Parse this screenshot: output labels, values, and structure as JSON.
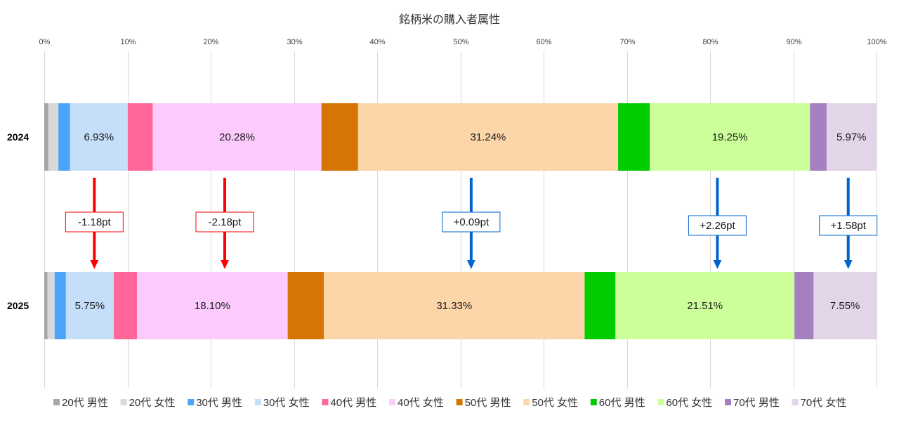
{
  "chart_data": {
    "type": "bar",
    "orientation": "horizontal",
    "stacked": "percent",
    "title": "銘柄米の購入者属性",
    "categories": [
      "2024",
      "2025"
    ],
    "xlim": [
      0,
      100
    ],
    "x_ticks": [
      "0%",
      "10%",
      "20%",
      "30%",
      "40%",
      "50%",
      "60%",
      "70%",
      "80%",
      "90%",
      "100%"
    ],
    "grid": "vertical",
    "legend_position": "bottom",
    "series": [
      {
        "name": "20代 男性",
        "color": "#a6a6a6",
        "values": [
          0.5,
          0.4
        ]
      },
      {
        "name": "20代 女性",
        "color": "#d9d9d9",
        "values": [
          1.2,
          0.85
        ]
      },
      {
        "name": "30代 男性",
        "color": "#4ba3fa",
        "values": [
          1.4,
          1.35
        ]
      },
      {
        "name": "30代 女性",
        "color": "#c5dffa",
        "values": [
          6.93,
          5.75
        ],
        "labels": [
          "6.93%",
          "5.75%"
        ],
        "change_label": "-1.18pt",
        "change_color": "#ff0000"
      },
      {
        "name": "40代 男性",
        "color": "#ff6699",
        "values": [
          3.0,
          2.8
        ]
      },
      {
        "name": "40代 女性",
        "color": "#fccafc",
        "values": [
          20.28,
          18.1
        ],
        "labels": [
          "20.28%",
          "18.10%"
        ],
        "change_label": "-2.18pt",
        "change_color": "#ff0000"
      },
      {
        "name": "50代 男性",
        "color": "#d67404",
        "values": [
          4.4,
          4.35
        ]
      },
      {
        "name": "50代 女性",
        "color": "#fcd5a8",
        "values": [
          31.24,
          31.33
        ],
        "labels": [
          "31.24%",
          "31.33%"
        ],
        "change_label": "+0.09pt",
        "change_color": "#0066cc"
      },
      {
        "name": "60代 男性",
        "color": "#00cc00",
        "values": [
          3.8,
          3.7
        ]
      },
      {
        "name": "60代 女性",
        "color": "#ccff99",
        "values": [
          19.25,
          21.51
        ],
        "labels": [
          "19.25%",
          "21.51%"
        ],
        "change_label": "+2.26pt",
        "change_color": "#0066cc"
      },
      {
        "name": "70代 男性",
        "color": "#a480c0",
        "values": [
          2.0,
          2.3
        ]
      },
      {
        "name": "70代 女性",
        "color": "#e1d5e7",
        "values": [
          5.97,
          7.55
        ],
        "labels": [
          "5.97%",
          "7.55%"
        ],
        "change_label": "+1.58pt",
        "change_color": "#0066cc"
      }
    ]
  }
}
